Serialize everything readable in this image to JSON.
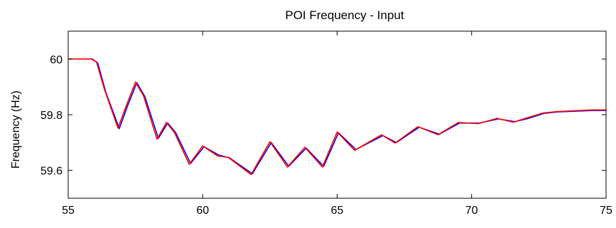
{
  "chart_data": {
    "type": "line",
    "title": "POI Frequency - Input",
    "xlabel": "",
    "ylabel": "Frequency (Hz)",
    "xlim": [
      55,
      75
    ],
    "ylim": [
      59.5,
      60.1
    ],
    "xticks": [
      55,
      60,
      65,
      70,
      75
    ],
    "yticks": [
      59.6,
      59.8,
      60
    ],
    "grid": false,
    "legend": "none",
    "series": [
      {
        "color": "#0000ff",
        "x": [
          55.0,
          55.9,
          56.1,
          56.4,
          56.9,
          57.2,
          57.55,
          57.85,
          58.35,
          58.7,
          59.0,
          59.55,
          60.05,
          60.6,
          61.0,
          61.85,
          62.55,
          63.2,
          63.85,
          64.5,
          65.05,
          65.7,
          66.7,
          67.2,
          68.05,
          68.8,
          69.55,
          70.3,
          71.0,
          71.6,
          72.05,
          72.7,
          73.2,
          74.5,
          75.0
        ],
        "values": [
          60.0,
          60.0,
          59.985,
          59.88,
          59.75,
          59.83,
          59.915,
          59.865,
          59.715,
          59.77,
          59.735,
          59.625,
          59.685,
          59.655,
          59.645,
          59.588,
          59.7,
          59.615,
          59.68,
          59.615,
          59.735,
          59.675,
          59.725,
          59.7,
          59.755,
          59.73,
          59.77,
          59.77,
          59.785,
          59.775,
          59.785,
          59.805,
          59.81,
          59.815,
          59.815
        ]
      },
      {
        "color": "#ff0000",
        "x": [
          55.0,
          55.85,
          56.05,
          56.35,
          56.85,
          57.15,
          57.5,
          57.8,
          58.3,
          58.65,
          58.95,
          59.5,
          60.0,
          60.55,
          60.95,
          61.8,
          62.5,
          63.15,
          63.8,
          64.45,
          65.0,
          65.65,
          66.65,
          67.15,
          68.0,
          68.75,
          69.5,
          70.25,
          70.95,
          71.55,
          72.0,
          72.65,
          73.15,
          74.45,
          75.0
        ],
        "values": [
          60.0,
          60.0,
          59.99,
          59.89,
          59.752,
          59.83,
          59.917,
          59.868,
          59.712,
          59.772,
          59.736,
          59.622,
          59.688,
          59.652,
          59.647,
          59.585,
          59.703,
          59.612,
          59.683,
          59.612,
          59.738,
          59.672,
          59.728,
          59.698,
          59.757,
          59.728,
          59.772,
          59.768,
          59.787,
          59.773,
          59.787,
          59.806,
          59.811,
          59.817,
          59.817
        ]
      }
    ]
  }
}
